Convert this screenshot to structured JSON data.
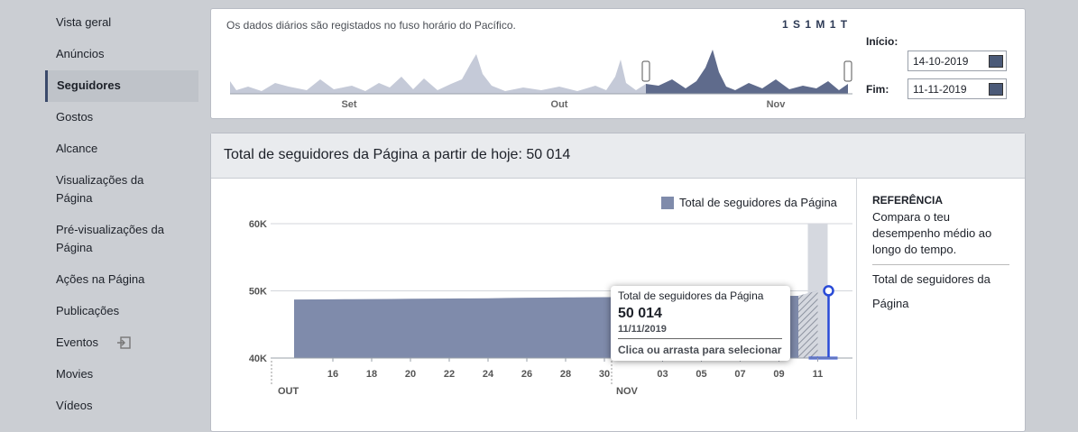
{
  "sidebar": {
    "items": [
      "Vista geral",
      "Anúncios",
      "Seguidores",
      "Gostos",
      "Alcance",
      "Visualizações da Página",
      "Pré-visualizações da Página",
      "Ações na Página",
      "Publicações",
      "Eventos",
      "Movies",
      "Vídeos"
    ]
  },
  "range_picker": {
    "note": "Os dados diários são registados no fuso horário do Pacífico.",
    "presets": [
      "1 S",
      "1 M",
      "1 T"
    ],
    "timeline_labels": [
      "Set",
      "Out",
      "Nov"
    ],
    "start_label": "Início:",
    "start_date": "14-10-2019",
    "end_label": "Fim:",
    "end_date": "11-11-2019"
  },
  "panel": {
    "title": "Total de seguidores da Página a partir de hoje: 50 014"
  },
  "chart_data": {
    "type": "area",
    "categories": [
      null,
      null,
      "16",
      null,
      "18",
      null,
      "20",
      null,
      "22",
      null,
      "24",
      null,
      "26",
      null,
      "28",
      null,
      "30",
      null,
      null,
      "03",
      null,
      "05",
      null,
      "07",
      null,
      "09",
      null,
      "11"
    ],
    "month_labels": [
      "OUT",
      "NOV"
    ],
    "series": [
      {
        "name": "Total de seguidores da Página",
        "color": "#7f8bab",
        "values": [
          48700,
          48720,
          48740,
          48760,
          48780,
          48800,
          48820,
          48840,
          48860,
          48880,
          48900,
          48950,
          48980,
          49000,
          49020,
          49040,
          49060,
          49080,
          49100,
          49120,
          49140,
          49160,
          49180,
          49200,
          49220,
          49240,
          49260,
          50014
        ]
      }
    ],
    "ylim": [
      40000,
      60000
    ],
    "yticks": [
      {
        "value": 40000,
        "label": "40K"
      },
      {
        "value": 50000,
        "label": "50K"
      },
      {
        "value": 60000,
        "label": "60K"
      }
    ],
    "grid": true
  },
  "tooltip": {
    "title": "Total de seguidores da Página",
    "value": "50 014",
    "date": "11/11/2019",
    "action": "Clica ou arrasta para selecionar"
  },
  "reference": {
    "heading": "REFERÊNCIA",
    "text": "Compara o teu desempenho médio ao longo do tempo.",
    "metric": "Total de seguidores da Página"
  }
}
